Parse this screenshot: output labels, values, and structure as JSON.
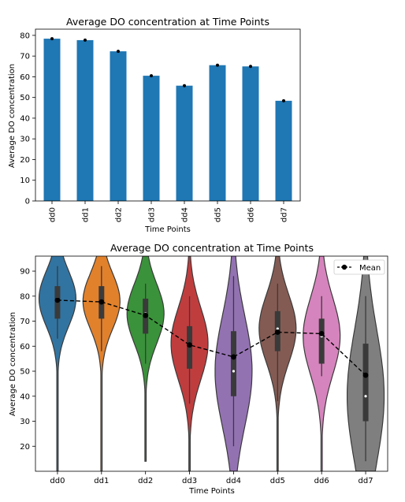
{
  "chart_data": [
    {
      "type": "bar",
      "title": "Average DO concentration at Time Points",
      "xlabel": "Time Points",
      "ylabel": "Average DO concentration",
      "categories": [
        "dd0",
        "dd1",
        "dd2",
        "dd3",
        "dd4",
        "dd5",
        "dd6",
        "dd7"
      ],
      "values": [
        78.4,
        77.7,
        72.3,
        60.5,
        55.7,
        65.6,
        65.0,
        48.4
      ],
      "error": [
        0.5,
        0.5,
        0.5,
        0.5,
        0.5,
        0.5,
        0.5,
        0.5
      ],
      "ylim": [
        0,
        83
      ],
      "yticks": [
        0,
        10,
        20,
        30,
        40,
        50,
        60,
        70,
        80
      ],
      "color": "#1f77b4",
      "grid": false
    },
    {
      "type": "violin",
      "title": "Average DO concentration at Time Points",
      "xlabel": "Time Points",
      "ylabel": "Average DO concentration",
      "categories": [
        "dd0",
        "dd1",
        "dd2",
        "dd3",
        "dd4",
        "dd5",
        "dd6",
        "dd7"
      ],
      "colors": [
        "#3274a1",
        "#e1812c",
        "#3a923a",
        "#c03d3e",
        "#9372b2",
        "#845b53",
        "#d684bd",
        "#7f7f7f"
      ],
      "ylim": [
        10,
        96
      ],
      "yticks": [
        20,
        30,
        40,
        50,
        60,
        70,
        80,
        90
      ],
      "violins": [
        {
          "name": "dd0",
          "median": 79,
          "q1": 71,
          "q3": 84,
          "wlo": 63,
          "whi": 92,
          "min": 10
        },
        {
          "name": "dd1",
          "median": 78,
          "q1": 71,
          "q3": 84,
          "wlo": 58,
          "whi": 92,
          "min": 10
        },
        {
          "name": "dd2",
          "median": 73,
          "q1": 65,
          "q3": 79,
          "wlo": 53,
          "whi": 85,
          "min": 14
        },
        {
          "name": "dd3",
          "median": 61,
          "q1": 51,
          "q3": 68,
          "wlo": 37,
          "whi": 80,
          "min": 10
        },
        {
          "name": "dd4",
          "median": 50,
          "q1": 40,
          "q3": 66,
          "wlo": 20,
          "whi": 88,
          "min": 10
        },
        {
          "name": "dd5",
          "median": 67,
          "q1": 58,
          "q3": 74,
          "wlo": 38,
          "whi": 85,
          "min": 10
        },
        {
          "name": "dd6",
          "median": 64,
          "q1": 53,
          "q3": 71,
          "wlo": 48,
          "whi": 80,
          "min": 10
        },
        {
          "name": "dd7",
          "median": 40,
          "q1": 30,
          "q3": 61,
          "wlo": 14,
          "whi": 80,
          "min": 10
        }
      ],
      "mean_series": {
        "name": "Mean",
        "values": [
          78.4,
          77.7,
          72.3,
          60.5,
          55.7,
          65.6,
          65.0,
          48.4
        ],
        "color": "#000000",
        "style": "dashed",
        "marker": "circle"
      },
      "legend": {
        "position": "top-right",
        "entries": [
          "Mean"
        ]
      },
      "grid": false
    }
  ]
}
